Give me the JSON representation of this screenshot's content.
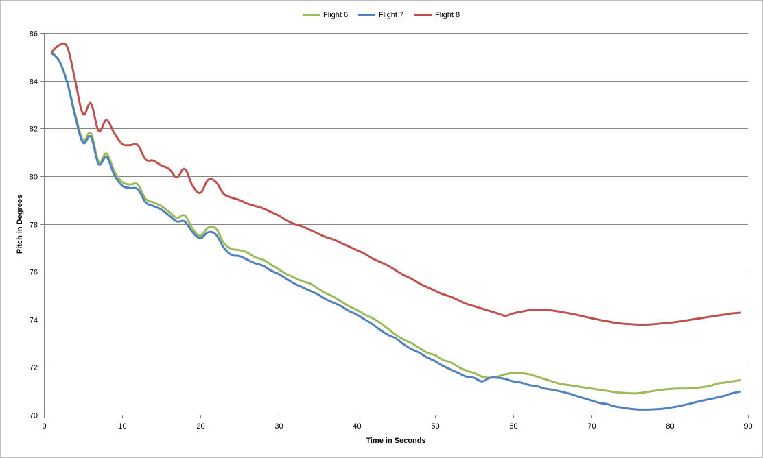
{
  "chart_data": {
    "type": "line",
    "xlabel": "Time in Seconds",
    "ylabel": "Pitch in Degrees",
    "xlim": [
      0,
      90
    ],
    "ylim": [
      70,
      86
    ],
    "x_ticks": [
      0,
      10,
      20,
      30,
      40,
      50,
      60,
      70,
      80,
      90
    ],
    "y_ticks": [
      70,
      72,
      74,
      76,
      78,
      80,
      82,
      84,
      86
    ],
    "grid": "horizontal",
    "legend_position": "top",
    "series": [
      {
        "name": "Flight 6",
        "color": "#9bbb59",
        "points": [
          [
            1,
            85.2
          ],
          [
            2,
            84.8
          ],
          [
            3,
            83.9
          ],
          [
            4,
            82.6
          ],
          [
            5,
            81.5
          ],
          [
            6,
            81.8
          ],
          [
            7,
            80.6
          ],
          [
            8,
            80.95
          ],
          [
            9,
            80.2
          ],
          [
            10,
            79.75
          ],
          [
            11,
            79.65
          ],
          [
            12,
            79.65
          ],
          [
            13,
            79.05
          ],
          [
            14,
            78.9
          ],
          [
            15,
            78.75
          ],
          [
            16,
            78.5
          ],
          [
            17,
            78.25
          ],
          [
            18,
            78.35
          ],
          [
            19,
            77.8
          ],
          [
            20,
            77.5
          ],
          [
            21,
            77.85
          ],
          [
            22,
            77.8
          ],
          [
            23,
            77.2
          ],
          [
            24,
            76.95
          ],
          [
            25,
            76.9
          ],
          [
            26,
            76.8
          ],
          [
            27,
            76.6
          ],
          [
            28,
            76.5
          ],
          [
            29,
            76.3
          ],
          [
            30,
            76.1
          ],
          [
            31,
            75.9
          ],
          [
            32,
            75.75
          ],
          [
            33,
            75.6
          ],
          [
            34,
            75.5
          ],
          [
            35,
            75.3
          ],
          [
            36,
            75.1
          ],
          [
            37,
            74.95
          ],
          [
            38,
            74.75
          ],
          [
            39,
            74.55
          ],
          [
            40,
            74.4
          ],
          [
            41,
            74.2
          ],
          [
            42,
            74.05
          ],
          [
            43,
            73.85
          ],
          [
            44,
            73.6
          ],
          [
            45,
            73.35
          ],
          [
            46,
            73.15
          ],
          [
            47,
            73.0
          ],
          [
            48,
            72.8
          ],
          [
            49,
            72.6
          ],
          [
            50,
            72.5
          ],
          [
            51,
            72.3
          ],
          [
            52,
            72.2
          ],
          [
            53,
            72.0
          ],
          [
            54,
            71.85
          ],
          [
            55,
            71.75
          ],
          [
            56,
            71.6
          ],
          [
            57,
            71.55
          ],
          [
            58,
            71.6
          ],
          [
            59,
            71.7
          ],
          [
            60,
            71.75
          ],
          [
            61,
            71.75
          ],
          [
            62,
            71.7
          ],
          [
            63,
            71.6
          ],
          [
            64,
            71.5
          ],
          [
            65,
            71.4
          ],
          [
            66,
            71.3
          ],
          [
            67,
            71.25
          ],
          [
            68,
            71.2
          ],
          [
            69,
            71.15
          ],
          [
            70,
            71.1
          ],
          [
            71,
            71.05
          ],
          [
            72,
            71.0
          ],
          [
            73,
            70.95
          ],
          [
            74,
            70.92
          ],
          [
            75,
            70.9
          ],
          [
            76,
            70.9
          ],
          [
            77,
            70.95
          ],
          [
            78,
            71.0
          ],
          [
            79,
            71.05
          ],
          [
            80,
            71.08
          ],
          [
            81,
            71.1
          ],
          [
            82,
            71.1
          ],
          [
            83,
            71.12
          ],
          [
            84,
            71.15
          ],
          [
            85,
            71.2
          ],
          [
            86,
            71.3
          ],
          [
            87,
            71.35
          ],
          [
            88,
            71.4
          ],
          [
            89,
            71.45
          ]
        ]
      },
      {
        "name": "Flight 7",
        "color": "#4f81bd",
        "points": [
          [
            1,
            85.15
          ],
          [
            2,
            84.8
          ],
          [
            3,
            83.9
          ],
          [
            4,
            82.5
          ],
          [
            5,
            81.4
          ],
          [
            6,
            81.65
          ],
          [
            7,
            80.5
          ],
          [
            8,
            80.8
          ],
          [
            9,
            80.05
          ],
          [
            10,
            79.6
          ],
          [
            11,
            79.5
          ],
          [
            12,
            79.45
          ],
          [
            13,
            78.9
          ],
          [
            14,
            78.75
          ],
          [
            15,
            78.6
          ],
          [
            16,
            78.35
          ],
          [
            17,
            78.1
          ],
          [
            18,
            78.1
          ],
          [
            19,
            77.65
          ],
          [
            20,
            77.4
          ],
          [
            21,
            77.65
          ],
          [
            22,
            77.55
          ],
          [
            23,
            77.0
          ],
          [
            24,
            76.7
          ],
          [
            25,
            76.65
          ],
          [
            26,
            76.5
          ],
          [
            27,
            76.35
          ],
          [
            28,
            76.25
          ],
          [
            29,
            76.05
          ],
          [
            30,
            75.9
          ],
          [
            31,
            75.7
          ],
          [
            32,
            75.5
          ],
          [
            33,
            75.35
          ],
          [
            34,
            75.2
          ],
          [
            35,
            75.05
          ],
          [
            36,
            74.85
          ],
          [
            37,
            74.7
          ],
          [
            38,
            74.55
          ],
          [
            39,
            74.35
          ],
          [
            40,
            74.2
          ],
          [
            41,
            74.0
          ],
          [
            42,
            73.8
          ],
          [
            43,
            73.55
          ],
          [
            44,
            73.35
          ],
          [
            45,
            73.2
          ],
          [
            46,
            72.95
          ],
          [
            47,
            72.75
          ],
          [
            48,
            72.6
          ],
          [
            49,
            72.4
          ],
          [
            50,
            72.25
          ],
          [
            51,
            72.05
          ],
          [
            52,
            71.9
          ],
          [
            53,
            71.75
          ],
          [
            54,
            71.6
          ],
          [
            55,
            71.55
          ],
          [
            56,
            71.4
          ],
          [
            57,
            71.55
          ],
          [
            58,
            71.55
          ],
          [
            59,
            71.5
          ],
          [
            60,
            71.4
          ],
          [
            61,
            71.35
          ],
          [
            62,
            71.25
          ],
          [
            63,
            71.2
          ],
          [
            64,
            71.1
          ],
          [
            65,
            71.05
          ],
          [
            66,
            70.98
          ],
          [
            67,
            70.9
          ],
          [
            68,
            70.8
          ],
          [
            69,
            70.7
          ],
          [
            70,
            70.6
          ],
          [
            71,
            70.5
          ],
          [
            72,
            70.45
          ],
          [
            73,
            70.35
          ],
          [
            74,
            70.3
          ],
          [
            75,
            70.25
          ],
          [
            76,
            70.22
          ],
          [
            77,
            70.22
          ],
          [
            78,
            70.23
          ],
          [
            79,
            70.25
          ],
          [
            80,
            70.3
          ],
          [
            81,
            70.35
          ],
          [
            82,
            70.42
          ],
          [
            83,
            70.5
          ],
          [
            84,
            70.58
          ],
          [
            85,
            70.65
          ],
          [
            86,
            70.72
          ],
          [
            87,
            70.8
          ],
          [
            88,
            70.9
          ],
          [
            89,
            70.97
          ]
        ]
      },
      {
        "name": "Flight 8",
        "color": "#c0504d",
        "points": [
          [
            1,
            85.2
          ],
          [
            2,
            85.5
          ],
          [
            3,
            85.4
          ],
          [
            4,
            84.0
          ],
          [
            5,
            82.6
          ],
          [
            6,
            83.05
          ],
          [
            7,
            81.9
          ],
          [
            8,
            82.35
          ],
          [
            9,
            81.8
          ],
          [
            10,
            81.35
          ],
          [
            11,
            81.3
          ],
          [
            12,
            81.3
          ],
          [
            13,
            80.7
          ],
          [
            14,
            80.65
          ],
          [
            15,
            80.45
          ],
          [
            16,
            80.3
          ],
          [
            17,
            79.95
          ],
          [
            18,
            80.3
          ],
          [
            19,
            79.6
          ],
          [
            20,
            79.3
          ],
          [
            21,
            79.85
          ],
          [
            22,
            79.75
          ],
          [
            23,
            79.25
          ],
          [
            24,
            79.1
          ],
          [
            25,
            79.0
          ],
          [
            26,
            78.85
          ],
          [
            27,
            78.75
          ],
          [
            28,
            78.65
          ],
          [
            29,
            78.5
          ],
          [
            30,
            78.35
          ],
          [
            31,
            78.15
          ],
          [
            32,
            78.0
          ],
          [
            33,
            77.9
          ],
          [
            34,
            77.75
          ],
          [
            35,
            77.6
          ],
          [
            36,
            77.45
          ],
          [
            37,
            77.35
          ],
          [
            38,
            77.2
          ],
          [
            39,
            77.05
          ],
          [
            40,
            76.9
          ],
          [
            41,
            76.75
          ],
          [
            42,
            76.55
          ],
          [
            43,
            76.4
          ],
          [
            44,
            76.25
          ],
          [
            45,
            76.05
          ],
          [
            46,
            75.85
          ],
          [
            47,
            75.7
          ],
          [
            48,
            75.5
          ],
          [
            49,
            75.35
          ],
          [
            50,
            75.2
          ],
          [
            51,
            75.05
          ],
          [
            52,
            74.95
          ],
          [
            53,
            74.8
          ],
          [
            54,
            74.65
          ],
          [
            55,
            74.55
          ],
          [
            56,
            74.45
          ],
          [
            57,
            74.35
          ],
          [
            58,
            74.25
          ],
          [
            59,
            74.15
          ],
          [
            60,
            74.25
          ],
          [
            61,
            74.32
          ],
          [
            62,
            74.38
          ],
          [
            63,
            74.4
          ],
          [
            64,
            74.4
          ],
          [
            65,
            74.37
          ],
          [
            66,
            74.32
          ],
          [
            67,
            74.26
          ],
          [
            68,
            74.2
          ],
          [
            69,
            74.12
          ],
          [
            70,
            74.05
          ],
          [
            71,
            73.98
          ],
          [
            72,
            73.92
          ],
          [
            73,
            73.86
          ],
          [
            74,
            73.82
          ],
          [
            75,
            73.8
          ],
          [
            76,
            73.78
          ],
          [
            77,
            73.78
          ],
          [
            78,
            73.8
          ],
          [
            79,
            73.83
          ],
          [
            80,
            73.86
          ],
          [
            81,
            73.9
          ],
          [
            82,
            73.95
          ],
          [
            83,
            74.0
          ],
          [
            84,
            74.05
          ],
          [
            85,
            74.1
          ],
          [
            86,
            74.15
          ],
          [
            87,
            74.2
          ],
          [
            88,
            74.25
          ],
          [
            89,
            74.28
          ]
        ]
      }
    ]
  }
}
